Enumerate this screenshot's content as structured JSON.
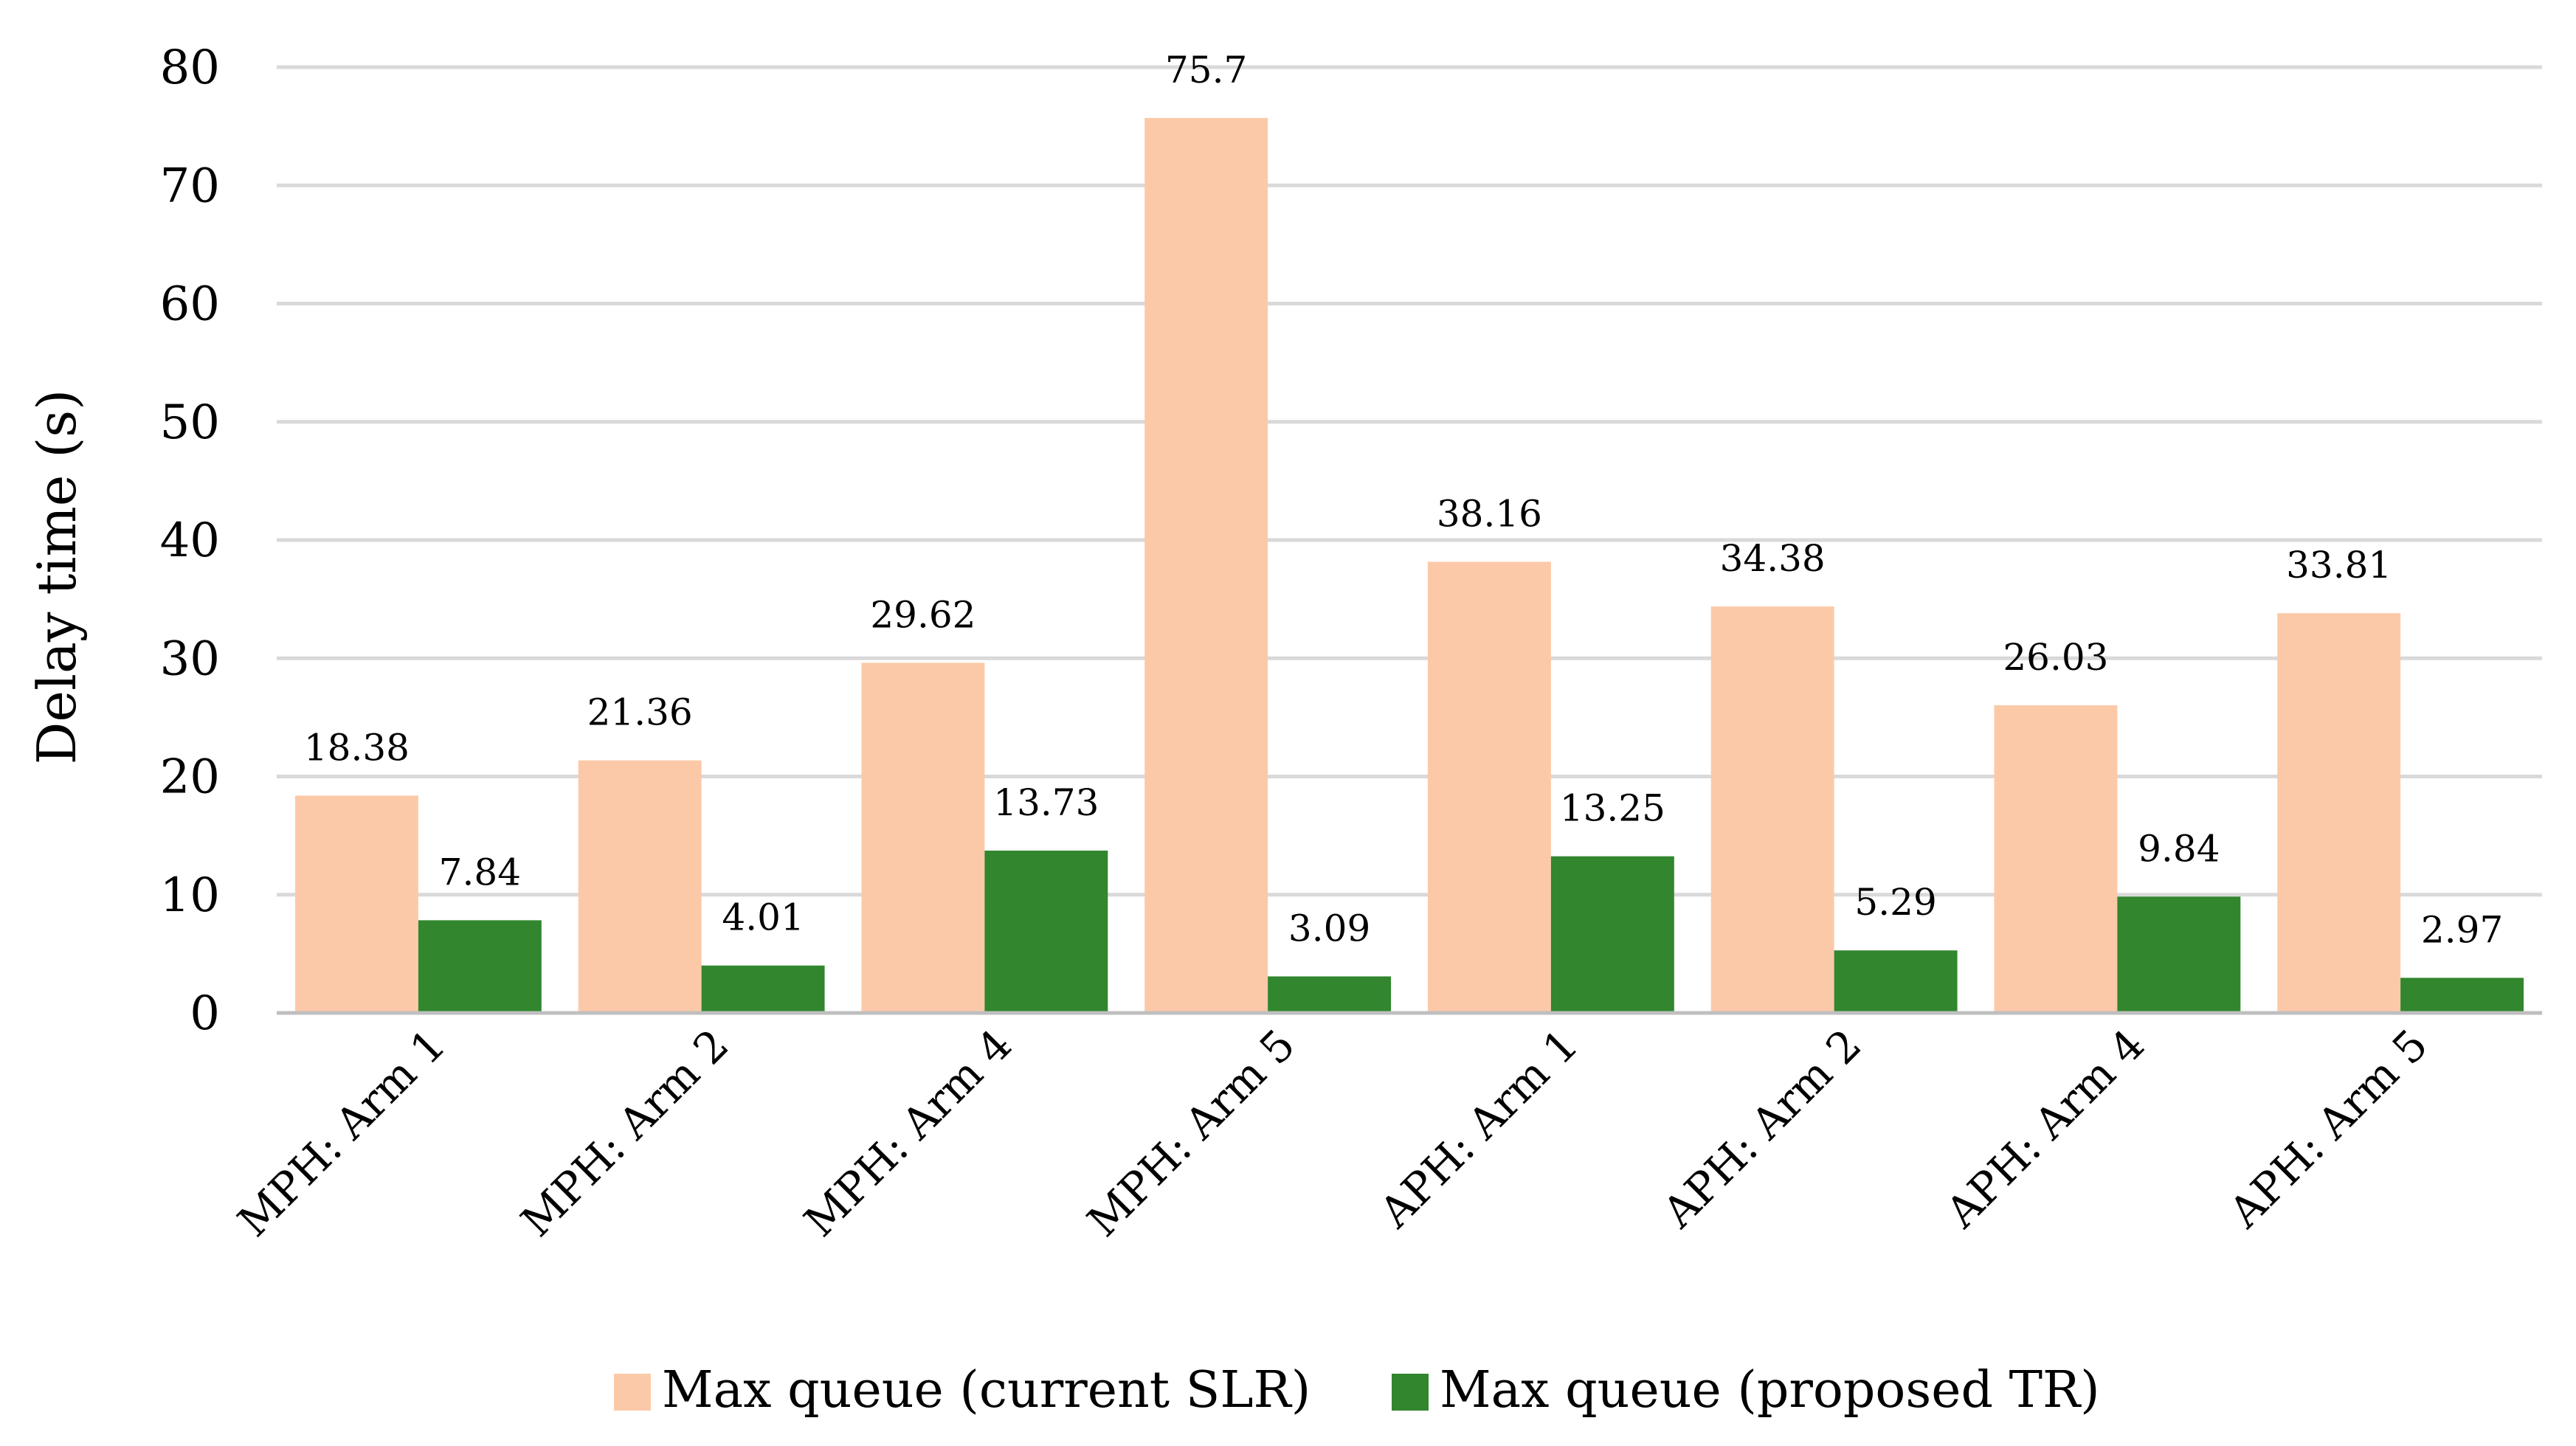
{
  "chart_data": {
    "type": "bar",
    "title": "",
    "xlabel": "",
    "ylabel": "Delay time (s)",
    "ylim": [
      0,
      80
    ],
    "yticks": [
      0,
      10,
      20,
      30,
      40,
      50,
      60,
      70,
      80
    ],
    "grid": true,
    "legend_position": "bottom",
    "categories": [
      "MPH: Arm 1",
      "MPH: Arm 2",
      "MPH: Arm 4",
      "MPH: Arm 5",
      "APH: Arm 1",
      "APH: Arm 2",
      "APH: Arm 4",
      "APH: Arm 5"
    ],
    "series": [
      {
        "name": "Max queue (current SLR)",
        "color": "#fcc9a8",
        "values": [
          18.38,
          21.36,
          29.62,
          75.7,
          38.16,
          34.38,
          26.03,
          33.81
        ],
        "labels": [
          "18.38",
          "21.36",
          "29.62",
          "75.7",
          "38.16",
          "34.38",
          "26.03",
          "33.81"
        ]
      },
      {
        "name": "Max queue (proposed TR)",
        "color": "#31862e",
        "values": [
          7.84,
          4.01,
          13.73,
          3.09,
          13.25,
          5.29,
          9.84,
          2.97
        ],
        "labels": [
          "7.84",
          "4.01",
          "13.73",
          "3.09",
          "13.25",
          "5.29",
          "9.84",
          "2.97"
        ]
      }
    ]
  }
}
